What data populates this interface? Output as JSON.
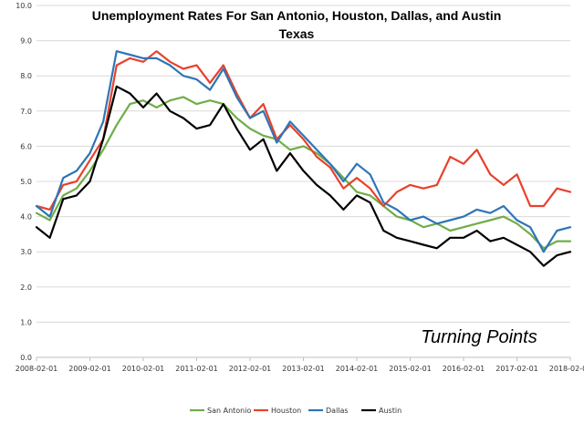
{
  "chart_data": {
    "type": "line",
    "title_line1": "Unemployment Rates For San Antonio, Houston, Dallas, and Austin",
    "title_line2": "Texas",
    "annotation": "Turning Points",
    "ylim": [
      0,
      10
    ],
    "yticks": [
      "0.0",
      "1.0",
      "2.0",
      "3.0",
      "4.0",
      "5.0",
      "6.0",
      "7.0",
      "8.0",
      "9.0",
      "10.0"
    ],
    "xticks": [
      "2008-02-01",
      "2009-02-01",
      "2010-02-01",
      "2011-02-01",
      "2012-02-01",
      "2013-02-01",
      "2014-02-01",
      "2015-02-01",
      "2016-02-01",
      "2017-02-01",
      "2018-02-01"
    ],
    "x_start_month": 0,
    "x_end_month": 120,
    "gridlines": true,
    "legend_position": "bottom",
    "series": [
      {
        "name": "San Antonio",
        "color": "#70ad47",
        "values": [
          [
            0,
            4.1
          ],
          [
            3,
            3.9
          ],
          [
            6,
            4.6
          ],
          [
            9,
            4.8
          ],
          [
            12,
            5.3
          ],
          [
            15,
            5.9
          ],
          [
            18,
            6.6
          ],
          [
            21,
            7.2
          ],
          [
            24,
            7.3
          ],
          [
            27,
            7.1
          ],
          [
            30,
            7.3
          ],
          [
            33,
            7.4
          ],
          [
            36,
            7.2
          ],
          [
            39,
            7.3
          ],
          [
            42,
            7.2
          ],
          [
            45,
            6.8
          ],
          [
            48,
            6.5
          ],
          [
            51,
            6.3
          ],
          [
            54,
            6.2
          ],
          [
            57,
            5.9
          ],
          [
            60,
            6.0
          ],
          [
            63,
            5.8
          ],
          [
            66,
            5.5
          ],
          [
            69,
            5.1
          ],
          [
            72,
            4.7
          ],
          [
            75,
            4.6
          ],
          [
            78,
            4.3
          ],
          [
            81,
            4.0
          ],
          [
            84,
            3.9
          ],
          [
            87,
            3.7
          ],
          [
            90,
            3.8
          ],
          [
            93,
            3.6
          ],
          [
            96,
            3.7
          ],
          [
            99,
            3.8
          ],
          [
            102,
            3.9
          ],
          [
            105,
            4.0
          ],
          [
            108,
            3.8
          ],
          [
            111,
            3.5
          ],
          [
            114,
            3.1
          ],
          [
            117,
            3.3
          ],
          [
            120,
            3.3
          ]
        ]
      },
      {
        "name": "Houston",
        "color": "#e8412c",
        "values": [
          [
            0,
            4.3
          ],
          [
            3,
            4.2
          ],
          [
            6,
            4.9
          ],
          [
            9,
            5.0
          ],
          [
            12,
            5.6
          ],
          [
            15,
            6.2
          ],
          [
            18,
            8.3
          ],
          [
            21,
            8.5
          ],
          [
            24,
            8.4
          ],
          [
            27,
            8.7
          ],
          [
            30,
            8.4
          ],
          [
            33,
            8.2
          ],
          [
            36,
            8.3
          ],
          [
            39,
            7.8
          ],
          [
            42,
            8.3
          ],
          [
            45,
            7.5
          ],
          [
            48,
            6.8
          ],
          [
            51,
            7.2
          ],
          [
            54,
            6.2
          ],
          [
            57,
            6.6
          ],
          [
            60,
            6.2
          ],
          [
            63,
            5.7
          ],
          [
            66,
            5.4
          ],
          [
            69,
            4.8
          ],
          [
            72,
            5.1
          ],
          [
            75,
            4.8
          ],
          [
            78,
            4.3
          ],
          [
            81,
            4.7
          ],
          [
            84,
            4.9
          ],
          [
            87,
            4.8
          ],
          [
            90,
            4.9
          ],
          [
            93,
            5.7
          ],
          [
            96,
            5.5
          ],
          [
            99,
            5.9
          ],
          [
            102,
            5.2
          ],
          [
            105,
            4.9
          ],
          [
            108,
            5.2
          ],
          [
            111,
            4.3
          ],
          [
            114,
            4.3
          ],
          [
            117,
            4.8
          ],
          [
            120,
            4.7
          ]
        ]
      },
      {
        "name": "Dallas",
        "color": "#2e75b6",
        "values": [
          [
            0,
            4.3
          ],
          [
            3,
            4.0
          ],
          [
            6,
            5.1
          ],
          [
            9,
            5.3
          ],
          [
            12,
            5.8
          ],
          [
            15,
            6.7
          ],
          [
            18,
            8.7
          ],
          [
            21,
            8.6
          ],
          [
            24,
            8.5
          ],
          [
            27,
            8.5
          ],
          [
            30,
            8.3
          ],
          [
            33,
            8.0
          ],
          [
            36,
            7.9
          ],
          [
            39,
            7.6
          ],
          [
            42,
            8.2
          ],
          [
            45,
            7.4
          ],
          [
            48,
            6.8
          ],
          [
            51,
            7.0
          ],
          [
            54,
            6.1
          ],
          [
            57,
            6.7
          ],
          [
            60,
            6.3
          ],
          [
            63,
            5.9
          ],
          [
            66,
            5.5
          ],
          [
            69,
            5.0
          ],
          [
            72,
            5.5
          ],
          [
            75,
            5.2
          ],
          [
            78,
            4.4
          ],
          [
            81,
            4.2
          ],
          [
            84,
            3.9
          ],
          [
            87,
            4.0
          ],
          [
            90,
            3.8
          ],
          [
            93,
            3.9
          ],
          [
            96,
            4.0
          ],
          [
            99,
            4.2
          ],
          [
            102,
            4.1
          ],
          [
            105,
            4.3
          ],
          [
            108,
            3.9
          ],
          [
            111,
            3.7
          ],
          [
            114,
            3.0
          ],
          [
            117,
            3.6
          ],
          [
            120,
            3.7
          ]
        ]
      },
      {
        "name": "Austin",
        "color": "#000000",
        "values": [
          [
            0,
            3.7
          ],
          [
            3,
            3.4
          ],
          [
            6,
            4.5
          ],
          [
            9,
            4.6
          ],
          [
            12,
            5.0
          ],
          [
            15,
            6.2
          ],
          [
            18,
            7.7
          ],
          [
            21,
            7.5
          ],
          [
            24,
            7.1
          ],
          [
            27,
            7.5
          ],
          [
            30,
            7.0
          ],
          [
            33,
            6.8
          ],
          [
            36,
            6.5
          ],
          [
            39,
            6.6
          ],
          [
            42,
            7.2
          ],
          [
            45,
            6.5
          ],
          [
            48,
            5.9
          ],
          [
            51,
            6.2
          ],
          [
            54,
            5.3
          ],
          [
            57,
            5.8
          ],
          [
            60,
            5.3
          ],
          [
            63,
            4.9
          ],
          [
            66,
            4.6
          ],
          [
            69,
            4.2
          ],
          [
            72,
            4.6
          ],
          [
            75,
            4.4
          ],
          [
            78,
            3.6
          ],
          [
            81,
            3.4
          ],
          [
            84,
            3.3
          ],
          [
            87,
            3.2
          ],
          [
            90,
            3.1
          ],
          [
            93,
            3.4
          ],
          [
            96,
            3.4
          ],
          [
            99,
            3.6
          ],
          [
            102,
            3.3
          ],
          [
            105,
            3.4
          ],
          [
            108,
            3.2
          ],
          [
            111,
            3.0
          ],
          [
            114,
            2.6
          ],
          [
            117,
            2.9
          ],
          [
            120,
            3.0
          ]
        ]
      }
    ]
  }
}
